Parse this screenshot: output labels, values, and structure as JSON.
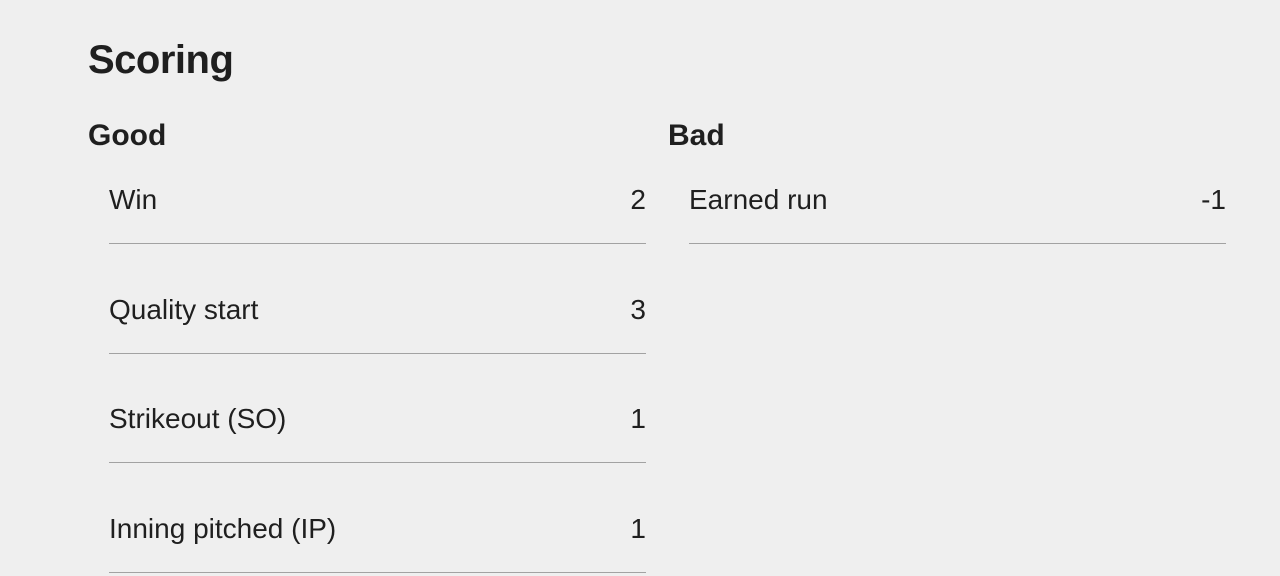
{
  "page": {
    "title": "Scoring"
  },
  "colors": {
    "background": "#efefef",
    "text": "#1f1f1f",
    "divider": "#a2a2a2"
  },
  "columns": [
    {
      "header": "Good",
      "rows": [
        {
          "label": "Win",
          "value": "2"
        },
        {
          "label": "Quality start",
          "value": "3"
        },
        {
          "label": "Strikeout (SO)",
          "value": "1"
        },
        {
          "label": "Inning pitched (IP)",
          "value": "1"
        }
      ]
    },
    {
      "header": "Bad",
      "rows": [
        {
          "label": "Earned run",
          "value": "-1"
        }
      ]
    }
  ]
}
